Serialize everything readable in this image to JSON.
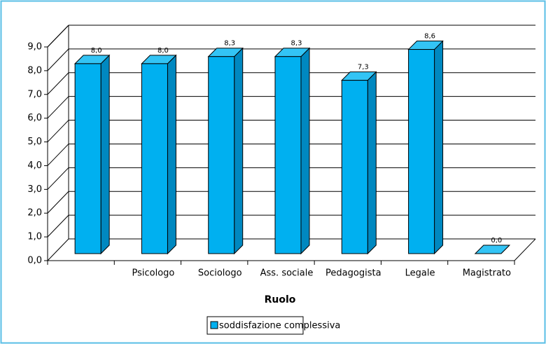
{
  "chart_data": {
    "type": "bar3d",
    "categories": [
      null,
      "Psicologo",
      "Sociologo",
      "Ass. sociale",
      "Pedagogista",
      "Legale",
      "Magistrato"
    ],
    "series": [
      {
        "name": "soddisfazione complessiva",
        "color": "#00b0f0",
        "values": [
          8.0,
          8.0,
          8.3,
          8.3,
          7.3,
          8.6,
          0.0
        ],
        "value_labels": [
          "8,0",
          "8,0",
          "8,3",
          "8,3",
          "7,3",
          "8,6",
          "0,0"
        ]
      }
    ],
    "x_label": "Ruolo",
    "ylim": [
      0,
      9
    ],
    "yticks": [
      {
        "value": 0,
        "label": "0,0"
      },
      {
        "value": 1,
        "label": "1,0"
      },
      {
        "value": 2,
        "label": "2,0"
      },
      {
        "value": 3,
        "label": "3,0"
      },
      {
        "value": 4,
        "label": "4,0"
      },
      {
        "value": 5,
        "label": "5,0"
      },
      {
        "value": 6,
        "label": "6,0"
      },
      {
        "value": 7,
        "label": "7,0"
      },
      {
        "value": 8,
        "label": "8,0"
      },
      {
        "value": 9,
        "label": "9,0"
      }
    ],
    "grid": true
  }
}
